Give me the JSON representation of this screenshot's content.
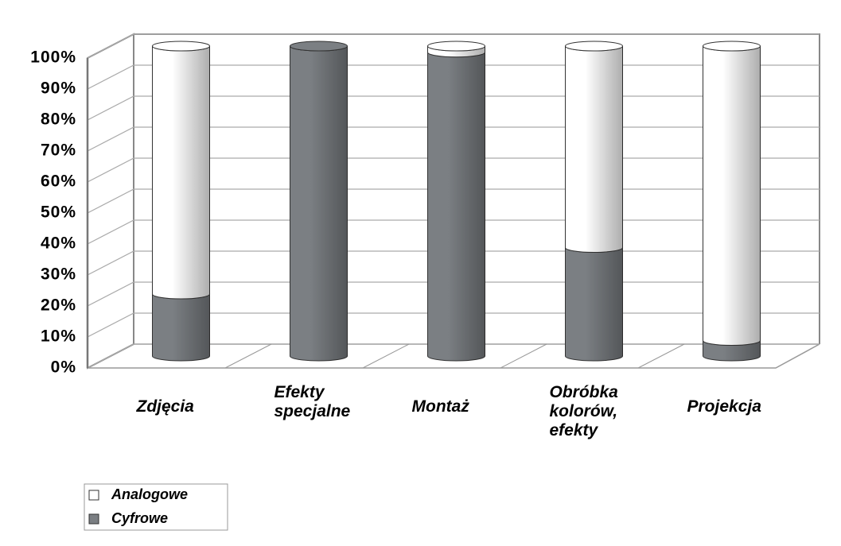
{
  "chart_data": {
    "type": "bar",
    "stacked": true,
    "categories": [
      "Zdjęcia",
      "Efekty specjalne",
      "Montaż",
      "Obróbka kolorów, efekty",
      "Projekcja"
    ],
    "series": [
      {
        "name": "Analogowe",
        "color": "#ffffff",
        "values": [
          80,
          0,
          2,
          65,
          95
        ]
      },
      {
        "name": "Cyfrowe",
        "color": "#7b7f83",
        "values": [
          20,
          100,
          98,
          35,
          5
        ]
      }
    ],
    "ylim": [
      0,
      100
    ],
    "yticks": [
      {
        "value": 0,
        "label": "0%"
      },
      {
        "value": 10,
        "label": "10%"
      },
      {
        "value": 20,
        "label": "20%"
      },
      {
        "value": 30,
        "label": "30%"
      },
      {
        "value": 40,
        "label": "40%"
      },
      {
        "value": 50,
        "label": "50%"
      },
      {
        "value": 60,
        "label": "60%"
      },
      {
        "value": 70,
        "label": "70%"
      },
      {
        "value": 80,
        "label": "80%"
      },
      {
        "value": 90,
        "label": "90%"
      },
      {
        "value": 100,
        "label": "100%"
      }
    ],
    "grid": true
  }
}
